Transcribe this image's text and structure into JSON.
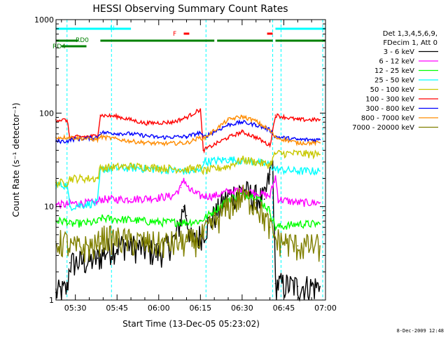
{
  "chart_data": {
    "type": "line",
    "title": "HESSI Observing Summary Count Rates",
    "xlabel": "Start Time (13-Dec-05 05:23:02)",
    "ylabel": "Count Rate (s⁻¹ detector⁻¹)",
    "scale_y": "log",
    "ylim": [
      1,
      1000
    ],
    "xlim": [
      "05:23:02",
      "07:00:00"
    ],
    "x_ticks": [
      "05:30",
      "05:45",
      "06:00",
      "06:15",
      "06:30",
      "06:45",
      "07:00"
    ],
    "y_ticks": [
      "1",
      "10",
      "100",
      "1000"
    ],
    "legend_header": [
      "Det 1,3,4,5,6,9,",
      "FDecim 1, Att 0"
    ],
    "series": [
      {
        "name": "3 - 6 keV",
        "color": "#000000",
        "x": [
          "05:23",
          "05:27",
          "05:28",
          "05:35",
          "05:38",
          "05:42",
          "05:48",
          "05:55",
          "06:00",
          "06:06",
          "06:09",
          "06:10",
          "06:12",
          "06:15",
          "06:20",
          "06:25",
          "06:30",
          "06:34",
          "06:38",
          "06:40",
          "06:41",
          "06:42",
          "06:50",
          "06:58"
        ],
        "y": [
          1.2,
          1.3,
          2.5,
          2.6,
          2.8,
          3.5,
          4,
          3.5,
          3.2,
          4.5,
          10,
          8,
          4,
          5,
          8,
          13,
          15,
          13,
          12,
          22,
          30,
          1.5,
          1.4,
          1.4
        ]
      },
      {
        "name": "6 - 12 keV",
        "color": "#ff00ff",
        "x": [
          "05:23",
          "05:27",
          "05:28",
          "05:38",
          "05:39",
          "05:50",
          "06:00",
          "06:05",
          "06:08",
          "06:09",
          "06:11",
          "06:15",
          "06:20",
          "06:25",
          "06:30",
          "06:35",
          "06:40",
          "06:42",
          "06:43",
          "06:50",
          "06:58"
        ],
        "y": [
          10.5,
          10.5,
          10.8,
          11,
          12,
          12,
          12.5,
          13,
          16,
          20,
          15,
          13,
          13,
          14.5,
          15,
          14,
          13,
          21,
          12,
          11,
          11
        ]
      },
      {
        "name": "12 - 25 keV",
        "color": "#00ff00",
        "x": [
          "05:23",
          "05:27",
          "05:28",
          "05:38",
          "05:39",
          "05:50",
          "06:00",
          "06:10",
          "06:15",
          "06:20",
          "06:25",
          "06:30",
          "06:35",
          "06:40",
          "06:42",
          "06:50",
          "06:58"
        ],
        "y": [
          7,
          7,
          6.5,
          6.8,
          7.5,
          7.2,
          6.8,
          6.8,
          7,
          9,
          12,
          13.5,
          13,
          9,
          6,
          6.5,
          6.5
        ]
      },
      {
        "name": "25 - 50 keV",
        "color": "#00ffff",
        "x": [
          "05:23",
          "05:27",
          "05:28",
          "05:38",
          "05:39",
          "05:50",
          "06:00",
          "06:10",
          "06:15",
          "06:16",
          "06:25",
          "06:30",
          "06:35",
          "06:40",
          "06:42",
          "06:50",
          "06:58"
        ],
        "y": [
          17,
          17,
          10,
          11,
          25,
          26,
          25,
          24,
          24,
          30,
          32,
          31,
          30,
          28,
          25,
          24,
          24
        ]
      },
      {
        "name": "50 - 100 keV",
        "color": "#c8c800",
        "x": [
          "05:23",
          "05:27",
          "05:28",
          "05:38",
          "05:39",
          "05:50",
          "06:00",
          "06:10",
          "06:15",
          "06:16",
          "06:25",
          "06:30",
          "06:35",
          "06:40",
          "06:42",
          "06:50",
          "06:58"
        ],
        "y": [
          18,
          18,
          20,
          20,
          26,
          27,
          26,
          25,
          26,
          24,
          27,
          32,
          30,
          28,
          37,
          37,
          36
        ]
      },
      {
        "name": "100 - 300 keV",
        "color": "#ff0000",
        "x": [
          "05:23",
          "05:27",
          "05:28",
          "05:38",
          "05:39",
          "05:45",
          "05:55",
          "06:05",
          "06:10",
          "06:15",
          "06:16",
          "06:25",
          "06:30",
          "06:35",
          "06:40",
          "06:42",
          "06:50",
          "06:58"
        ],
        "y": [
          85,
          84,
          55,
          57,
          95,
          92,
          78,
          80,
          90,
          110,
          40,
          55,
          63,
          55,
          45,
          95,
          85,
          85
        ]
      },
      {
        "name": "300 - 800 keV",
        "color": "#0000ff",
        "x": [
          "05:23",
          "05:27",
          "05:28",
          "05:38",
          "05:39",
          "05:50",
          "06:00",
          "06:10",
          "06:15",
          "06:16",
          "06:25",
          "06:30",
          "06:35",
          "06:40",
          "06:42",
          "06:50",
          "06:58"
        ],
        "y": [
          50,
          50,
          52,
          55,
          62,
          60,
          55,
          56,
          62,
          55,
          75,
          80,
          75,
          66,
          56,
          52,
          52
        ]
      },
      {
        "name": "800 - 7000 keV",
        "color": "#ff8c00",
        "x": [
          "05:23",
          "05:27",
          "05:28",
          "05:38",
          "05:39",
          "05:50",
          "06:00",
          "06:10",
          "06:15",
          "06:16",
          "06:25",
          "06:30",
          "06:35",
          "06:40",
          "06:42",
          "06:50",
          "06:58"
        ],
        "y": [
          55,
          55,
          55,
          52,
          56,
          50,
          47,
          48,
          55,
          53,
          85,
          92,
          82,
          65,
          55,
          48,
          48
        ]
      },
      {
        "name": "7000 - 20000 keV",
        "color": "#808000",
        "x": [
          "05:23",
          "05:27",
          "05:28",
          "05:38",
          "05:39",
          "05:50",
          "06:00",
          "06:10",
          "06:15",
          "06:16",
          "06:25",
          "06:30",
          "06:35",
          "06:40",
          "06:42",
          "06:50",
          "06:58"
        ],
        "y": [
          4.2,
          4.2,
          3.6,
          3.8,
          4.8,
          4.3,
          4,
          4.2,
          4.5,
          5,
          10,
          13,
          11,
          6,
          4.5,
          3.8,
          3.8
        ]
      }
    ],
    "flag_labels": {
      "rd4": "RD4",
      "rd0": "RD0",
      "n": "N",
      "f": "F"
    },
    "flags": [
      {
        "name": "rd4",
        "color": "#008000",
        "segments": [
          [
            "05:25",
            "05:34"
          ]
        ]
      },
      {
        "name": "rd0",
        "color": "#008000",
        "segments": [
          [
            "05:23",
            "05:31"
          ],
          [
            "05:39",
            "06:20"
          ],
          [
            "06:21",
            "06:41"
          ],
          [
            "06:42",
            "07:00"
          ]
        ]
      },
      {
        "name": "n",
        "color": "#00ffff",
        "segments": [
          [
            "05:23",
            "05:50"
          ],
          [
            "06:42",
            "07:00"
          ]
        ]
      },
      {
        "name": "f",
        "color": "#ff0000",
        "segments": [
          [
            "06:09",
            "06:11"
          ],
          [
            "06:39",
            "06:41"
          ]
        ]
      }
    ],
    "vlines": [
      "05:27",
      "05:43",
      "06:17",
      "06:41",
      "06:44",
      "06:59"
    ],
    "vline_color": "#00ffff"
  },
  "timestamp": "8-Dec-2009 12:48"
}
